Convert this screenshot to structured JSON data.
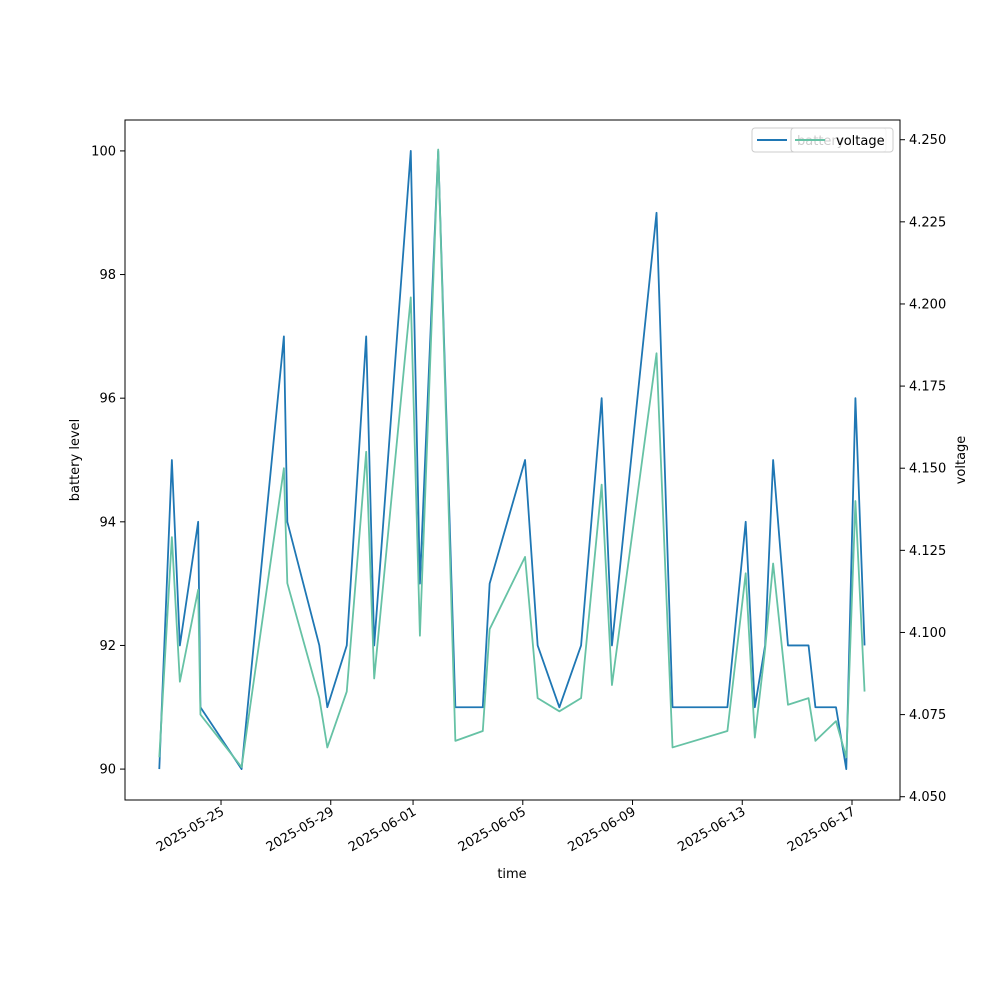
{
  "chart_data": {
    "type": "line",
    "xlabel": "time",
    "ylabel": "battery level",
    "y2label": "voltage",
    "x_ticks": [
      "2025-05-25",
      "2025-05-29",
      "2025-06-01",
      "2025-06-05",
      "2025-06-09",
      "2025-06-13",
      "2025-06-17"
    ],
    "x_range": [
      "2025-05-21T12:00",
      "2025-06-18T18:00"
    ],
    "ylim": [
      89.5,
      100.5
    ],
    "y_ticks": [
      90,
      92,
      94,
      96,
      98,
      100
    ],
    "y2lim": [
      4.049,
      4.256
    ],
    "y2_ticks": [
      "4.050",
      "4.075",
      "4.100",
      "4.125",
      "4.150",
      "4.175",
      "4.200",
      "4.225",
      "4.250"
    ],
    "legend_placement": "top-right",
    "series": [
      {
        "name": "battery",
        "axis": "left",
        "color": "#1f77b4",
        "x": [
          "2025-05-22T18:00",
          "2025-05-23T05:00",
          "2025-05-23T12:00",
          "2025-05-24T04:00",
          "2025-05-24T06:00",
          "2025-05-25T18:00",
          "2025-05-27T07:00",
          "2025-05-27T10:00",
          "2025-05-28T14:00",
          "2025-05-28T21:00",
          "2025-05-29T14:00",
          "2025-05-30T07:00",
          "2025-05-30T14:00",
          "2025-05-31T22:00",
          "2025-06-01T06:00",
          "2025-06-01T22:00",
          "2025-06-02T13:00",
          "2025-06-03T13:00",
          "2025-06-03T19:00",
          "2025-06-05T02:00",
          "2025-06-05T13:00",
          "2025-06-06T08:00",
          "2025-06-07T03:00",
          "2025-06-07T21:00",
          "2025-06-08T06:00",
          "2025-06-09T21:00",
          "2025-06-10T11:00",
          "2025-06-12T11:00",
          "2025-06-13T03:00",
          "2025-06-13T11:00",
          "2025-06-13T20:00",
          "2025-06-14T03:00",
          "2025-06-14T16:00",
          "2025-06-15T10:00",
          "2025-06-15T16:00",
          "2025-06-16T10:00",
          "2025-06-16T19:00",
          "2025-06-17T03:00",
          "2025-06-17T11:00"
        ],
        "values": [
          90,
          95,
          92,
          94,
          91,
          90,
          97,
          94,
          92,
          91,
          92,
          97,
          92,
          100,
          93,
          100,
          91,
          91,
          93,
          95,
          92,
          91,
          92,
          96,
          92,
          99,
          91,
          91,
          94,
          91,
          92,
          95,
          92,
          92,
          91,
          91,
          90,
          96,
          92
        ]
      },
      {
        "name": "voltage",
        "axis": "right",
        "color": "#66c2a5",
        "x": [
          "2025-05-22T18:00",
          "2025-05-23T05:00",
          "2025-05-23T12:00",
          "2025-05-24T04:00",
          "2025-05-24T06:00",
          "2025-05-25T18:00",
          "2025-05-27T07:00",
          "2025-05-27T10:00",
          "2025-05-28T14:00",
          "2025-05-28T21:00",
          "2025-05-29T14:00",
          "2025-05-30T07:00",
          "2025-05-30T14:00",
          "2025-05-31T22:00",
          "2025-06-01T06:00",
          "2025-06-01T22:00",
          "2025-06-02T13:00",
          "2025-06-03T13:00",
          "2025-06-03T19:00",
          "2025-06-05T02:00",
          "2025-06-05T13:00",
          "2025-06-06T08:00",
          "2025-06-07T03:00",
          "2025-06-07T21:00",
          "2025-06-08T06:00",
          "2025-06-09T21:00",
          "2025-06-10T11:00",
          "2025-06-12T11:00",
          "2025-06-13T03:00",
          "2025-06-13T11:00",
          "2025-06-13T20:00",
          "2025-06-14T03:00",
          "2025-06-14T16:00",
          "2025-06-15T10:00",
          "2025-06-15T16:00",
          "2025-06-16T10:00",
          "2025-06-16T19:00",
          "2025-06-17T03:00",
          "2025-06-17T11:00"
        ],
        "values": [
          4.062,
          4.129,
          4.085,
          4.113,
          4.075,
          4.059,
          4.15,
          4.115,
          4.08,
          4.065,
          4.082,
          4.155,
          4.086,
          4.202,
          4.099,
          4.247,
          4.067,
          4.07,
          4.101,
          4.123,
          4.08,
          4.076,
          4.08,
          4.145,
          4.084,
          4.185,
          4.065,
          4.07,
          4.118,
          4.068,
          4.095,
          4.121,
          4.078,
          4.08,
          4.067,
          4.073,
          4.062,
          4.14,
          4.082
        ]
      }
    ]
  }
}
